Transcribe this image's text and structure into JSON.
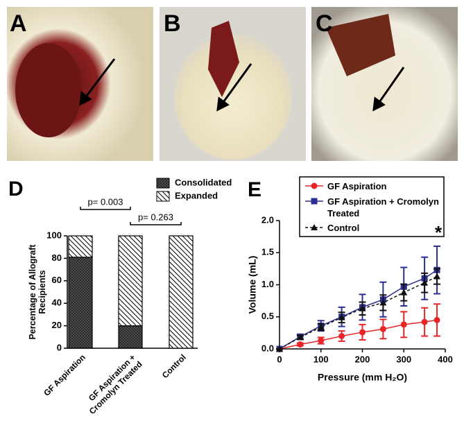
{
  "photo_labels": [
    "A",
    "B",
    "C"
  ],
  "chart_data": [
    {
      "type": "bar",
      "label": "D",
      "stacked": true,
      "categories": [
        "GF Aspiration",
        "GF Aspiration + Cromolyn Treated",
        "Control"
      ],
      "series": [
        {
          "name": "Consolidated",
          "color": "#555555",
          "pattern": "crosshatch",
          "values": [
            81,
            20,
            0
          ]
        },
        {
          "name": "Expanded",
          "color": "#ffffff",
          "pattern": "diagonal",
          "values": [
            19,
            80,
            100
          ]
        }
      ],
      "ylabel": "Percentage of Allograft Recipients",
      "ylim": [
        0,
        100
      ],
      "yticks": [
        0,
        20,
        40,
        60,
        80,
        100
      ],
      "annotations": [
        "p= 0.003",
        "p= 0.263"
      ]
    },
    {
      "type": "line",
      "label": "E",
      "x": [
        0,
        50,
        100,
        150,
        200,
        250,
        300,
        350,
        380
      ],
      "series": [
        {
          "name": "GF Aspiration",
          "color": "#e8262a",
          "marker": "circle",
          "line_style": "solid",
          "values": [
            0,
            0.07,
            0.13,
            0.2,
            0.26,
            0.31,
            0.38,
            0.42,
            0.45
          ],
          "errors": [
            0,
            0.02,
            0.05,
            0.08,
            0.12,
            0.15,
            0.2,
            0.22,
            0.25
          ]
        },
        {
          "name": "GF Aspiration + Cromolyn Treated",
          "color": "#2b2f8f",
          "marker": "square",
          "line_style": "solid",
          "values": [
            0,
            0.19,
            0.36,
            0.5,
            0.65,
            0.77,
            0.97,
            1.1,
            1.23
          ],
          "errors": [
            0,
            0.04,
            0.08,
            0.15,
            0.2,
            0.27,
            0.3,
            0.33,
            0.37
          ]
        },
        {
          "name": "Control",
          "color": "#111111",
          "marker": "triangle",
          "line_style": "dashed",
          "values": [
            0,
            0.18,
            0.34,
            0.49,
            0.63,
            0.72,
            0.88,
            1.03,
            1.13
          ],
          "errors": [
            0,
            0.03,
            0.05,
            0.08,
            0.1,
            0.12,
            0.13,
            0.15,
            0.12
          ]
        }
      ],
      "xlabel": "Pressure (mm H₂O)",
      "ylabel": "Volume (mL)",
      "xlim": [
        0,
        400
      ],
      "xticks": [
        0,
        100,
        200,
        300,
        400
      ],
      "ylim": [
        0,
        2.0
      ],
      "yticks": [
        {
          "value": 0,
          "label": "0.0"
        },
        {
          "value": 0.5,
          "label": "0.5"
        },
        {
          "value": 1.0,
          "label": "1.0"
        },
        {
          "value": 1.5,
          "label": "1.5"
        },
        {
          "value": 2.0,
          "label": "2.0"
        }
      ],
      "annotations": [
        "*"
      ]
    }
  ]
}
